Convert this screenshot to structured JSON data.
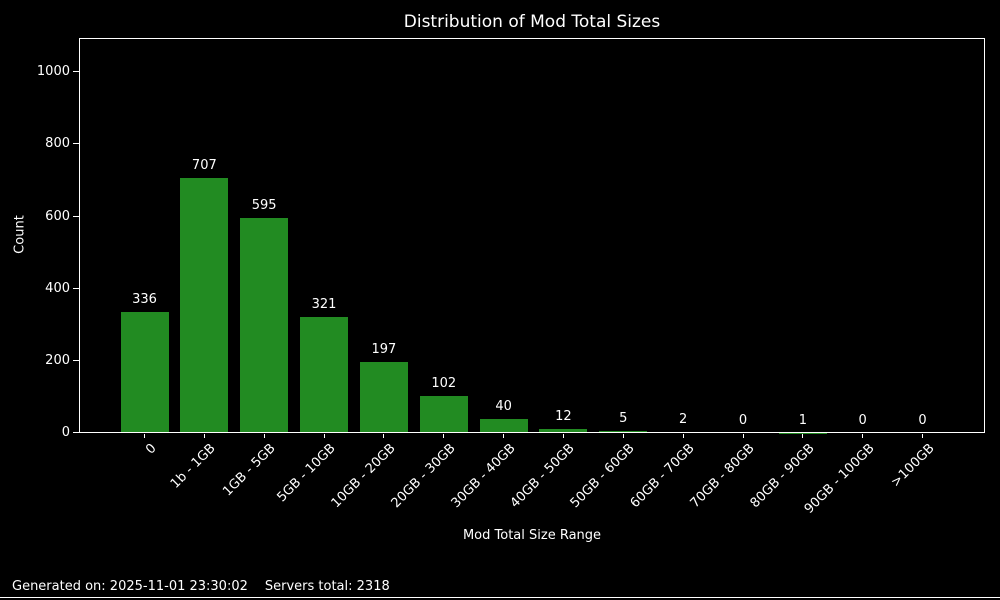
{
  "figure": {
    "background_color": "#000000",
    "text_color": "#ffffff"
  },
  "chart_data": {
    "type": "bar",
    "title": "Distribution of Mod Total Sizes",
    "xlabel": "Mod Total Size Range",
    "ylabel": "Count",
    "categories": [
      "0",
      "1b - 1GB",
      "1GB - 5GB",
      "5GB - 10GB",
      "10GB - 20GB",
      "20GB - 30GB",
      "30GB - 40GB",
      "40GB - 50GB",
      "50GB - 60GB",
      "60GB - 70GB",
      "70GB - 80GB",
      "80GB - 90GB",
      "90GB - 100GB",
      ">100GB"
    ],
    "values": [
      336,
      707,
      595,
      321,
      197,
      102,
      40,
      12,
      5,
      2,
      0,
      1,
      0,
      0
    ],
    "bar_value_labels": [
      "336",
      "707",
      "595",
      "321",
      "197",
      "102",
      "40",
      "12",
      "5",
      "2",
      "0",
      "1",
      "0",
      "0"
    ],
    "yticks": [
      0,
      200,
      400,
      600,
      800,
      1000
    ],
    "ylim": [
      0,
      1095
    ],
    "xtick_rotation_deg": 45,
    "bar_color": "#228B22",
    "spine_color": "#ffffff",
    "grid": false,
    "legend": false
  },
  "footer": {
    "generated_text": "Generated on: 2025-11-01 23:30:02",
    "servers_total_text": "Servers total: 2318"
  }
}
